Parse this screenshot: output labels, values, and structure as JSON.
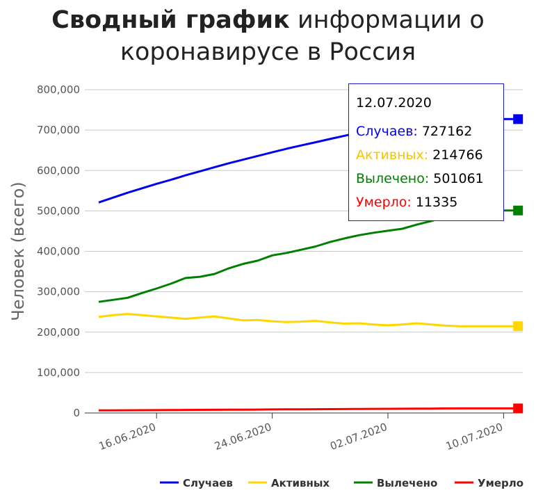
{
  "title": {
    "bold": "Сводный график",
    "rest_line1": " информации о",
    "line2": "коронавирусе в Россия"
  },
  "colors": {
    "cases": "#0000ee",
    "active": "#ffd700",
    "recovered": "#008000",
    "deaths": "#ff0000"
  },
  "tooltip": {
    "date": "12.07.2020",
    "rows": [
      {
        "label": "Случаев:",
        "value": "727162",
        "color": "#0000ee"
      },
      {
        "label": "Активных:",
        "value": "214766",
        "color": "#f5c400"
      },
      {
        "label": "Вылечено:",
        "value": "501061",
        "color": "#008000"
      },
      {
        "label": "Умерло:",
        "value": "11335",
        "color": "#ff0000"
      }
    ]
  },
  "chart_data": {
    "type": "line",
    "title": "Сводный график информации о коронавирусе в Россия",
    "xlabel": "",
    "ylabel": "Человек (всего)",
    "ylim": [
      0,
      800000
    ],
    "y_ticks": [
      "0",
      "100,000",
      "200,000",
      "300,000",
      "400,000",
      "500,000",
      "600,000",
      "700,000",
      "800,000"
    ],
    "x_tick_labels": [
      "16.06.2020",
      "24.06.2020",
      "02.07.2020",
      "10.07.2020"
    ],
    "x_tick_index": [
      4,
      12,
      20,
      28
    ],
    "x_range_index": [
      0,
      29
    ],
    "grid": true,
    "legend_position": "bottom-right",
    "series": [
      {
        "name": "Случаев",
        "color": "#0000ee",
        "values": [
          521000,
          533000,
          545000,
          556000,
          567000,
          577000,
          588000,
          598000,
          608000,
          618000,
          627000,
          636000,
          645000,
          654000,
          662000,
          670000,
          678000,
          686000,
          694000,
          701000,
          708000,
          713000,
          718000,
          722000,
          725000,
          727162,
          727162,
          727162,
          727162,
          727162
        ]
      },
      {
        "name": "Активных",
        "color": "#ffd700",
        "values": [
          238000,
          242000,
          245000,
          242000,
          239000,
          236000,
          233000,
          236000,
          239000,
          234000,
          229000,
          230000,
          227000,
          225000,
          226000,
          228000,
          224000,
          221000,
          222000,
          219000,
          217000,
          219000,
          222000,
          219000,
          216000,
          214766,
          214766,
          214766,
          214766,
          214766
        ]
      },
      {
        "name": "Вылечено",
        "color": "#008000",
        "values": [
          275000,
          280000,
          285000,
          297000,
          308000,
          320000,
          334000,
          337000,
          344000,
          358000,
          369000,
          377000,
          390000,
          396000,
          404000,
          412000,
          423000,
          432000,
          440000,
          446000,
          451000,
          456000,
          466000,
          475000,
          486000,
          501061,
          501061,
          501061,
          501061,
          501061
        ]
      },
      {
        "name": "Умерло",
        "color": "#ff0000",
        "values": [
          6300,
          6500,
          6700,
          6900,
          7100,
          7300,
          7500,
          7700,
          7900,
          8100,
          8300,
          8500,
          8700,
          8900,
          9100,
          9300,
          9500,
          9700,
          9900,
          10100,
          10300,
          10500,
          10700,
          10900,
          11100,
          11335,
          11335,
          11335,
          11335,
          11335
        ]
      }
    ]
  }
}
